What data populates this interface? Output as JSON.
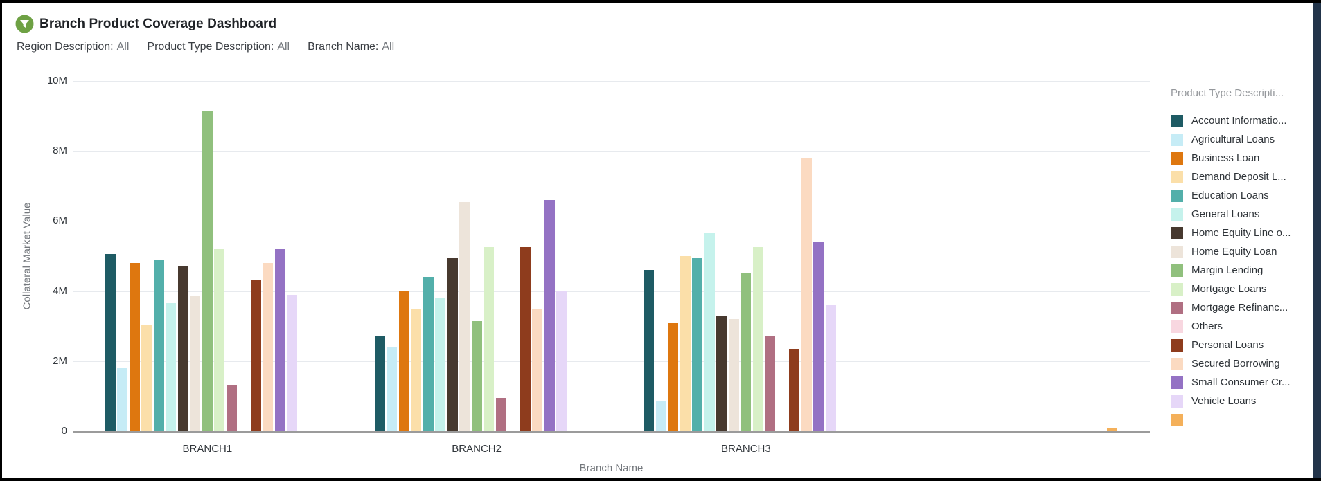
{
  "header": {
    "title": "Branch Product Coverage Dashboard",
    "icon": "filter-funnel-icon",
    "icon_color": "#6ea144"
  },
  "filters": [
    {
      "label": "Region Description:",
      "value": "All"
    },
    {
      "label": "Product Type Description:",
      "value": "All"
    },
    {
      "label": "Branch Name:",
      "value": "All"
    }
  ],
  "chart_data": {
    "type": "bar",
    "title": "",
    "xlabel": "Branch Name",
    "ylabel": "Collateral Market Value",
    "unit": "M",
    "ylim_millions": [
      0,
      10
    ],
    "yticks": [
      {
        "value": 0,
        "label": "0"
      },
      {
        "value": 2,
        "label": "2M"
      },
      {
        "value": 4,
        "label": "4M"
      },
      {
        "value": 6,
        "label": "6M"
      },
      {
        "value": 8,
        "label": "8M"
      },
      {
        "value": 10,
        "label": "10M"
      }
    ],
    "grid": "horizontal",
    "legend_position": "right",
    "legend_title": "Product Type Descripti...",
    "categories": [
      "BRANCH1",
      "BRANCH2",
      "BRANCH3",
      ""
    ],
    "series": [
      {
        "name": "Account Informatio...",
        "color": "#1e5b64",
        "values_millions": [
          5.05,
          2.7,
          4.6,
          0
        ]
      },
      {
        "name": "Agricultural Loans",
        "color": "#c6ecf6",
        "values_millions": [
          1.8,
          2.4,
          0.85,
          0
        ]
      },
      {
        "name": "Business Loan",
        "color": "#de770f",
        "values_millions": [
          4.8,
          4.0,
          3.1,
          0
        ]
      },
      {
        "name": "Demand Deposit L...",
        "color": "#fbdfa9",
        "values_millions": [
          3.05,
          3.5,
          5.0,
          0
        ]
      },
      {
        "name": "Education Loans",
        "color": "#53afaa",
        "values_millions": [
          4.9,
          4.4,
          4.95,
          0
        ]
      },
      {
        "name": "General Loans",
        "color": "#c5f2ec",
        "values_millions": [
          3.65,
          3.8,
          5.65,
          0
        ]
      },
      {
        "name": "Home Equity Line o...",
        "color": "#47392f",
        "values_millions": [
          4.7,
          4.95,
          3.3,
          0
        ]
      },
      {
        "name": "Home Equity Loan",
        "color": "#ede4da",
        "values_millions": [
          3.85,
          6.55,
          3.2,
          0
        ]
      },
      {
        "name": "Margin Lending",
        "color": "#90c07d",
        "values_millions": [
          9.15,
          3.15,
          4.5,
          0
        ]
      },
      {
        "name": "Mortgage Loans",
        "color": "#d8f0c7",
        "values_millions": [
          5.2,
          5.25,
          5.25,
          0
        ]
      },
      {
        "name": "Mortgage Refinanc...",
        "color": "#b06f82",
        "values_millions": [
          1.3,
          0.95,
          2.7,
          0
        ]
      },
      {
        "name": "Others",
        "color": "#f8d7e0",
        "values_millions": [
          0,
          0,
          0,
          0
        ]
      },
      {
        "name": "Personal Loans",
        "color": "#8e3c1d",
        "values_millions": [
          4.3,
          5.25,
          2.35,
          0
        ]
      },
      {
        "name": "Secured Borrowing",
        "color": "#fbdac1",
        "values_millions": [
          4.8,
          3.5,
          7.8,
          0
        ]
      },
      {
        "name": "Small Consumer Cr...",
        "color": "#9472c4",
        "values_millions": [
          5.2,
          6.6,
          5.4,
          0
        ]
      },
      {
        "name": "Vehicle Loans",
        "color": "#e6d7f8",
        "values_millions": [
          3.9,
          4.0,
          3.6,
          0
        ]
      },
      {
        "name": "",
        "color": "#f4b05a",
        "values_millions": [
          0,
          0,
          0,
          0.1
        ]
      }
    ]
  }
}
